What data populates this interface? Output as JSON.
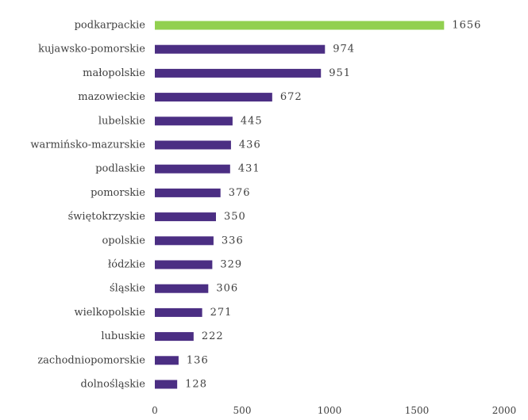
{
  "chart_data": {
    "type": "bar",
    "orientation": "horizontal",
    "categories": [
      "podkarpackie",
      "kujawsko-pomorskie",
      "małopolskie",
      "mazowieckie",
      "lubelskie",
      "warmińsko-mazurskie",
      "podlaskie",
      "pomorskie",
      "świętokrzyskie",
      "opolskie",
      "łódzkie",
      "śląskie",
      "wielkopolskie",
      "lubuskie",
      "zachodniopomorskie",
      "dolnośląskie"
    ],
    "values": [
      1656,
      974,
      951,
      672,
      445,
      436,
      431,
      376,
      350,
      336,
      329,
      306,
      271,
      222,
      136,
      128
    ],
    "value_labels": [
      "1656",
      "974",
      "951",
      "672",
      "445",
      "436",
      "431",
      "376",
      "350",
      "336",
      "329",
      "306",
      "271",
      "222",
      "136",
      "128"
    ],
    "highlight_index": 0,
    "colors": {
      "default": "#4b2e83",
      "highlight": "#92d050"
    },
    "xlim": [
      0,
      2000
    ],
    "xticks": [
      "0",
      "500",
      "1000",
      "1500",
      "2000"
    ],
    "grid": false,
    "legend": "none"
  }
}
